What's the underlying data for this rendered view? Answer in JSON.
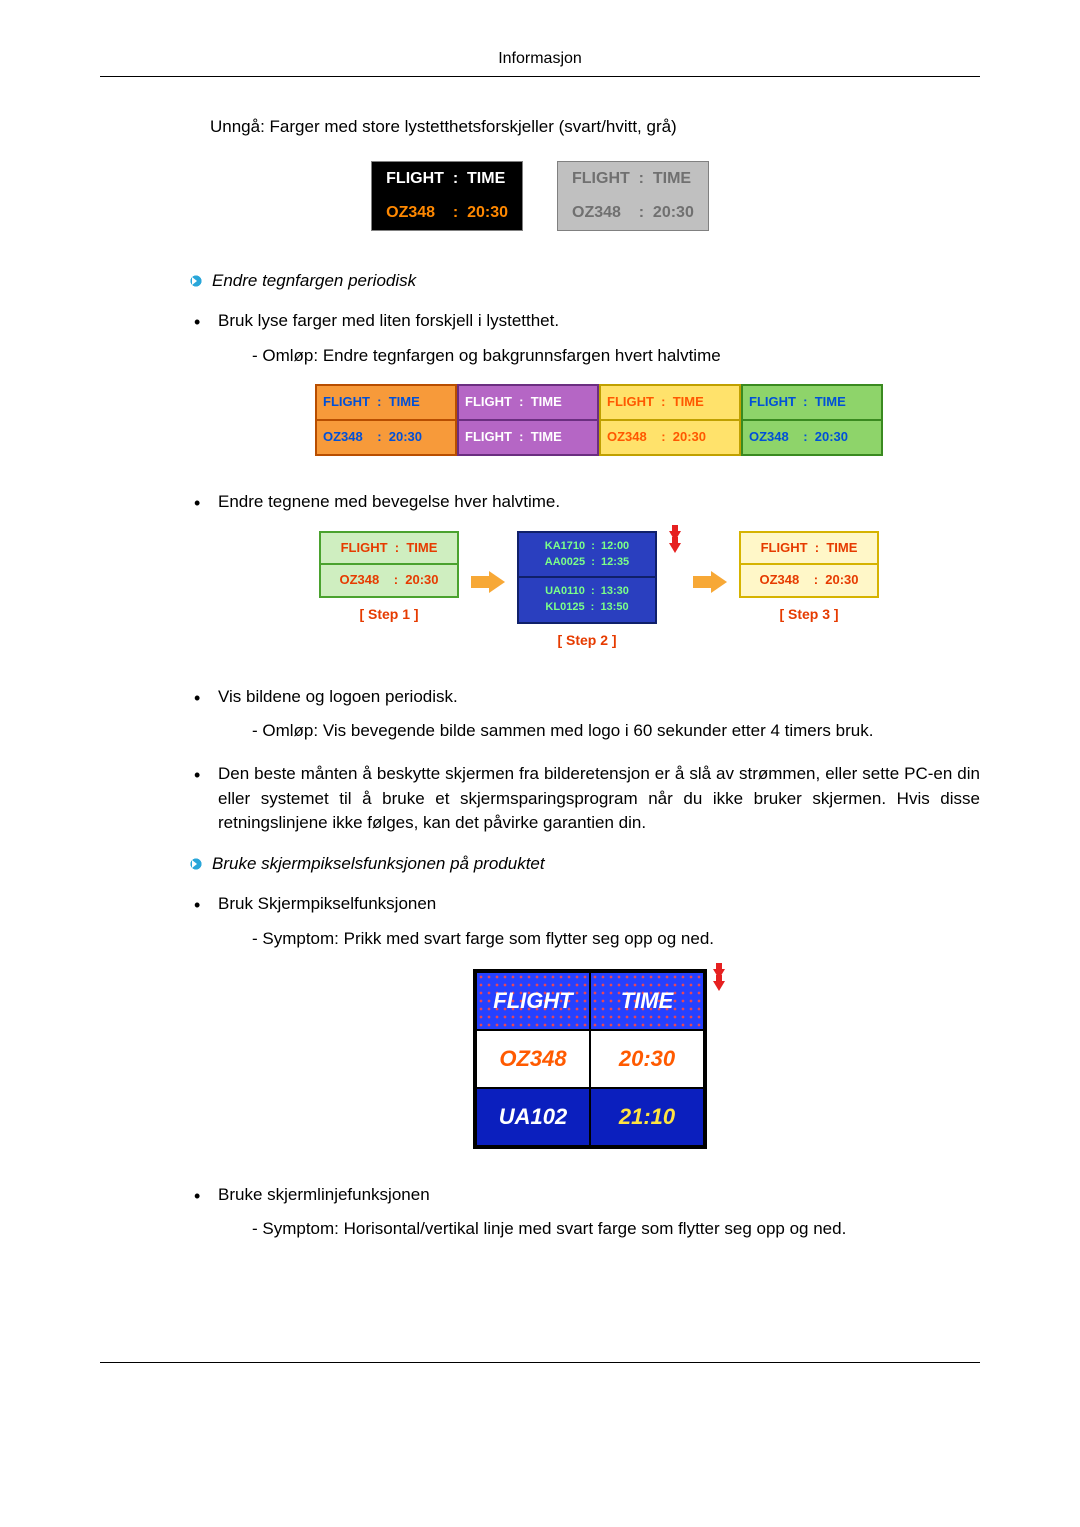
{
  "header": {
    "title": "Informasjon"
  },
  "intro": "Unngå: Farger med store lystetthetsforskjeller (svart/hvitt, grå)",
  "box_common": {
    "row1": "FLIGHT  :  TIME",
    "row2": "OZ348    :  20:30"
  },
  "sub1": {
    "title": "Endre tegnfargen periodisk"
  },
  "b1": {
    "text": "Bruk lyse farger med liten forskjell i lystetthet.",
    "sub": "- Omløp: Endre tegnfargen og bakgrunnsfargen hvert halvtime"
  },
  "four": {
    "c1": {
      "r1": "FLIGHT  :  TIME",
      "r2": "OZ348    :  20:30"
    },
    "c2": {
      "r1": "FLIGHT  :  TIME",
      "r2": "FLIGHT  :  TIME"
    },
    "c3": {
      "r1": "FLIGHT  :  TIME",
      "r2": "OZ348    :  20:30"
    },
    "c4": {
      "r1": "FLIGHT  :  TIME",
      "r2": "OZ348    :  20:30"
    }
  },
  "b2": {
    "text": "Endre tegnene med bevegelse hver halvtime."
  },
  "steps": {
    "s1": {
      "r1": "FLIGHT  :  TIME",
      "r2": "OZ348    :  20:30",
      "label": "[  Step 1  ]"
    },
    "s2": {
      "r1": "KA1710  :  12:00\nAA0025  :  12:35",
      "r2": "UA0110  :  13:30\nKL0125  :  13:50",
      "label": "[  Step 2  ]"
    },
    "s3": {
      "r1": "FLIGHT  :  TIME",
      "r2": "OZ348    :  20:30",
      "label": "[  Step 3  ]"
    }
  },
  "b3": {
    "text": "Vis bildene og logoen periodisk.",
    "sub": "- Omløp: Vis bevegende bilde sammen med logo i 60 sekunder etter 4 timers bruk."
  },
  "b4": {
    "text": "Den beste månten å beskytte skjermen fra bilderetensjon er å slå av strømmen, eller sette PC-en din eller systemet til å bruke et skjermsparingsprogram når du ikke bruker skjermen. Hvis disse retningslinjene ikke følges, kan det påvirke garantien din."
  },
  "sub2": {
    "title": "Bruke skjermpikselsfunksjonen på produktet"
  },
  "b5": {
    "text": "Bruk Skjermpikselfunksjonen",
    "sub": "- Symptom: Prikk med svart farge som flytter seg opp og ned."
  },
  "ptable": {
    "h1": "FLIGHT",
    "h2": "TIME",
    "r1c1": "OZ348",
    "r1c2": "20:30",
    "r2c1": "UA102",
    "r2c2": "21:10"
  },
  "b6": {
    "text": "Bruke skjermlinjefunksjonen",
    "sub": "- Symptom: Horisontal/vertikal linje med svart farge som flytter seg opp og ned."
  }
}
